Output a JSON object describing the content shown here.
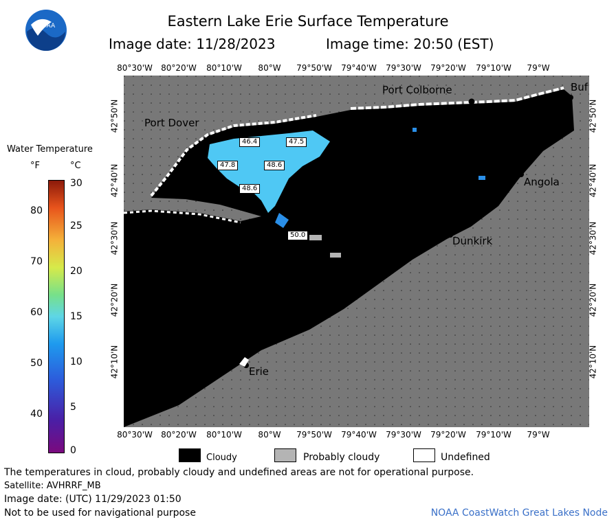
{
  "header": {
    "title": "Eastern Lake Erie Surface Temperature",
    "image_date": "Image date: 11/28/2023",
    "image_time": "Image time: 20:50 (EST)"
  },
  "map": {
    "lon_labels": [
      "80°30'W",
      "80°20'W",
      "80°10'W",
      "80°W",
      "79°50'W",
      "79°40'W",
      "79°30'W",
      "79°20'W",
      "79°10'W",
      "79°W"
    ],
    "lat_labels": [
      "42°50'N",
      "42°40'N",
      "42°30'N",
      "42°20'N",
      "42°10'N"
    ],
    "cities": [
      {
        "name": "Port Dover"
      },
      {
        "name": "Port Colborne"
      },
      {
        "name": "Buf"
      },
      {
        "name": "Angola"
      },
      {
        "name": "Dunkirk"
      },
      {
        "name": "Erie"
      }
    ],
    "temperature_values": [
      "46.4",
      "47.5",
      "47.8",
      "48.6",
      "48.6",
      "50.0"
    ],
    "colors": {
      "land": "#787878",
      "cloud": "#000000",
      "water_cyan": "#4fc8f4",
      "water_blue": "#2a8fe8"
    }
  },
  "legend": {
    "title": "Water Temperature",
    "unit_f": "°F",
    "unit_c": "°C",
    "ticks_f": [
      "80",
      "70",
      "60",
      "50",
      "40"
    ],
    "ticks_c": [
      "30",
      "25",
      "20",
      "15",
      "10",
      "5",
      "0"
    ]
  },
  "key": {
    "cloudy": "Cloudy",
    "probably_cloudy": "Probably cloudy",
    "undefined": "Undefined",
    "colors": {
      "cloudy": "#000000",
      "probably_cloudy": "#b4b4b4",
      "undefined": "#ffffff"
    }
  },
  "footer": {
    "disclaimer": "The temperatures in cloud, probably cloudy and undefined areas are not for operational purpose.",
    "satellite": "Satellite: AVHRRF_MB",
    "utc_date": "Image date: (UTC) 11/29/2023  01:50",
    "navigation": "Not to be used for navigational purpose",
    "credit": "NOAA CoastWatch Great Lakes Node"
  },
  "logo": {
    "text": "NOAA"
  }
}
